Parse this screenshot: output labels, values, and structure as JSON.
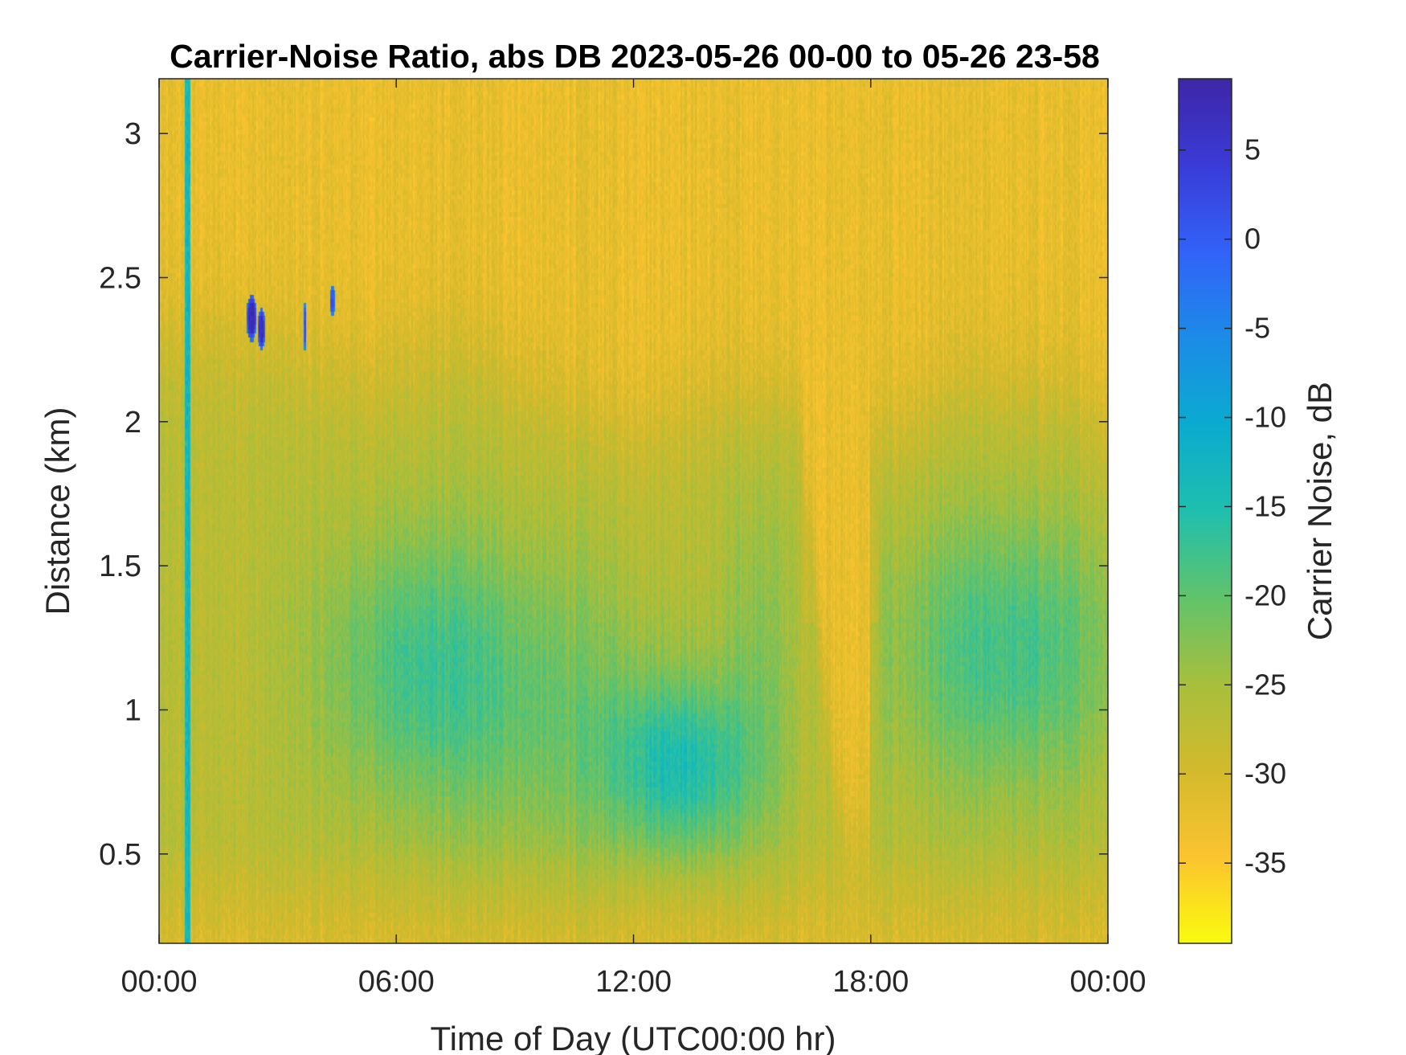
{
  "chart_data": {
    "type": "heatmap",
    "title": "Carrier-Noise Ratio, abs DB 2023-05-26 00-00 to 05-26 23-58",
    "xlabel": "Time of Day (UTC00:00 hr)",
    "ylabel": "Distance (km)",
    "colorbar_label": "Carrier Noise, dB",
    "x_ticks": [
      "00:00",
      "06:00",
      "12:00",
      "18:00",
      "00:00"
    ],
    "x_range_hours": [
      0,
      24
    ],
    "y_ticks": [
      "0.5",
      "1",
      "1.5",
      "2",
      "2.5",
      "3"
    ],
    "y_tick_values": [
      0.5,
      1,
      1.5,
      2,
      2.5,
      3
    ],
    "ylim": [
      0.19,
      3.19
    ],
    "colorbar_ticks": [
      "5",
      "0",
      "-5",
      "-10",
      "-15",
      "-20",
      "-25",
      "-30",
      "-35"
    ],
    "colorbar_tick_values": [
      5,
      0,
      -5,
      -10,
      -15,
      -20,
      -25,
      -30,
      -35
    ],
    "clim": [
      -39.5,
      9
    ],
    "colormap": "parula reversed",
    "colormap_stops": [
      "#f9fb0e",
      "#fbc330",
      "#d3ba2c",
      "#a7bf3c",
      "#61c36b",
      "#1fbfae",
      "#0aabcf",
      "#1c8be7",
      "#3262f8",
      "#3a3bd6",
      "#3e26a8"
    ],
    "grid": false,
    "features": [
      {
        "description": "low-level enhanced layer (green) morning",
        "hours": [
          4,
          9
        ],
        "km": [
          0.8,
          1.8
        ],
        "value_db": -18
      },
      {
        "description": "strongest return near noon",
        "hours": [
          11.5,
          14.5
        ],
        "km": [
          0.55,
          1.1
        ],
        "value_db": -16
      },
      {
        "description": "evening layer",
        "hours": [
          18.3,
          24
        ],
        "km": [
          0.6,
          2.0
        ],
        "value_db": -19
      },
      {
        "description": "cloud echoes",
        "hours": [
          2.1,
          4.6
        ],
        "km": [
          2.25,
          2.5
        ],
        "value_db": 7
      },
      {
        "description": "vertical streak artifact",
        "hours": [
          0.7,
          0.8
        ],
        "km": [
          0.19,
          3.19
        ],
        "value_db": -12
      }
    ]
  }
}
